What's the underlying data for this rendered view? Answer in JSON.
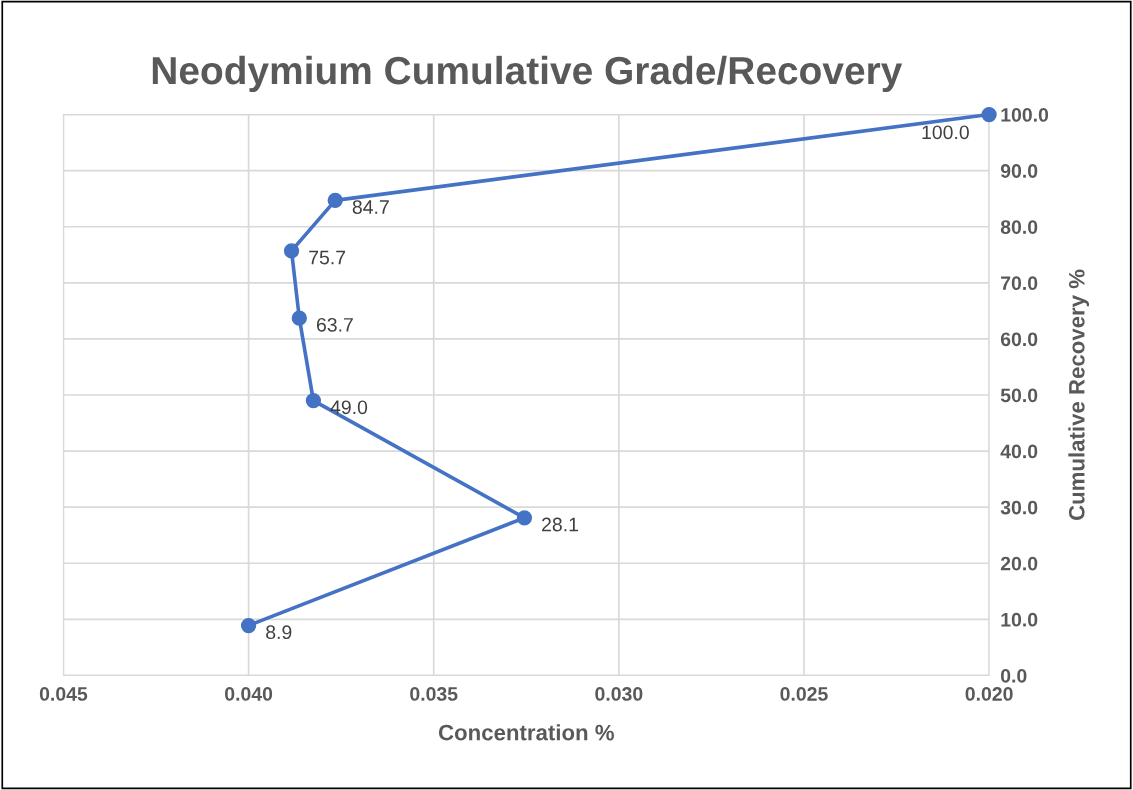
{
  "chart_data": {
    "type": "line",
    "title": "Neodymium Cumulative Grade/Recovery",
    "xlabel": "Concentration %",
    "ylabel": "Cumulative Recovery %",
    "x": [
      0.04,
      0.03255,
      0.03825,
      0.03863,
      0.03884,
      0.03766,
      0.02
    ],
    "series": [
      {
        "color": "#4472c4",
        "values": [
          8.9,
          28.1,
          49.0,
          63.7,
          75.7,
          84.7,
          100.0
        ],
        "value_labels": [
          "8.9",
          "28.1",
          "49.0",
          "63.7",
          "75.7",
          "84.7",
          "100.0"
        ]
      }
    ],
    "xlim": [
      0.045,
      0.02
    ],
    "xticks": [
      {
        "value": 0.045,
        "label": "0.045"
      },
      {
        "value": 0.04,
        "label": "0.040"
      },
      {
        "value": 0.035,
        "label": "0.035"
      },
      {
        "value": 0.03,
        "label": "0.030"
      },
      {
        "value": 0.025,
        "label": "0.025"
      },
      {
        "value": 0.02,
        "label": "0.020"
      }
    ],
    "ylim": [
      0,
      100
    ],
    "yticks": [
      {
        "value": 0,
        "label": "0.0"
      },
      {
        "value": 10,
        "label": "10.0"
      },
      {
        "value": 20,
        "label": "20.0"
      },
      {
        "value": 30,
        "label": "30.0"
      },
      {
        "value": 40,
        "label": "40.0"
      },
      {
        "value": 50,
        "label": "50.0"
      },
      {
        "value": 60,
        "label": "60.0"
      },
      {
        "value": 70,
        "label": "70.0"
      },
      {
        "value": 80,
        "label": "80.0"
      },
      {
        "value": 90,
        "label": "90.0"
      },
      {
        "value": 100,
        "label": "100.0"
      }
    ],
    "grid": true,
    "marker": "circle",
    "line_style": "solid",
    "legend": false
  }
}
